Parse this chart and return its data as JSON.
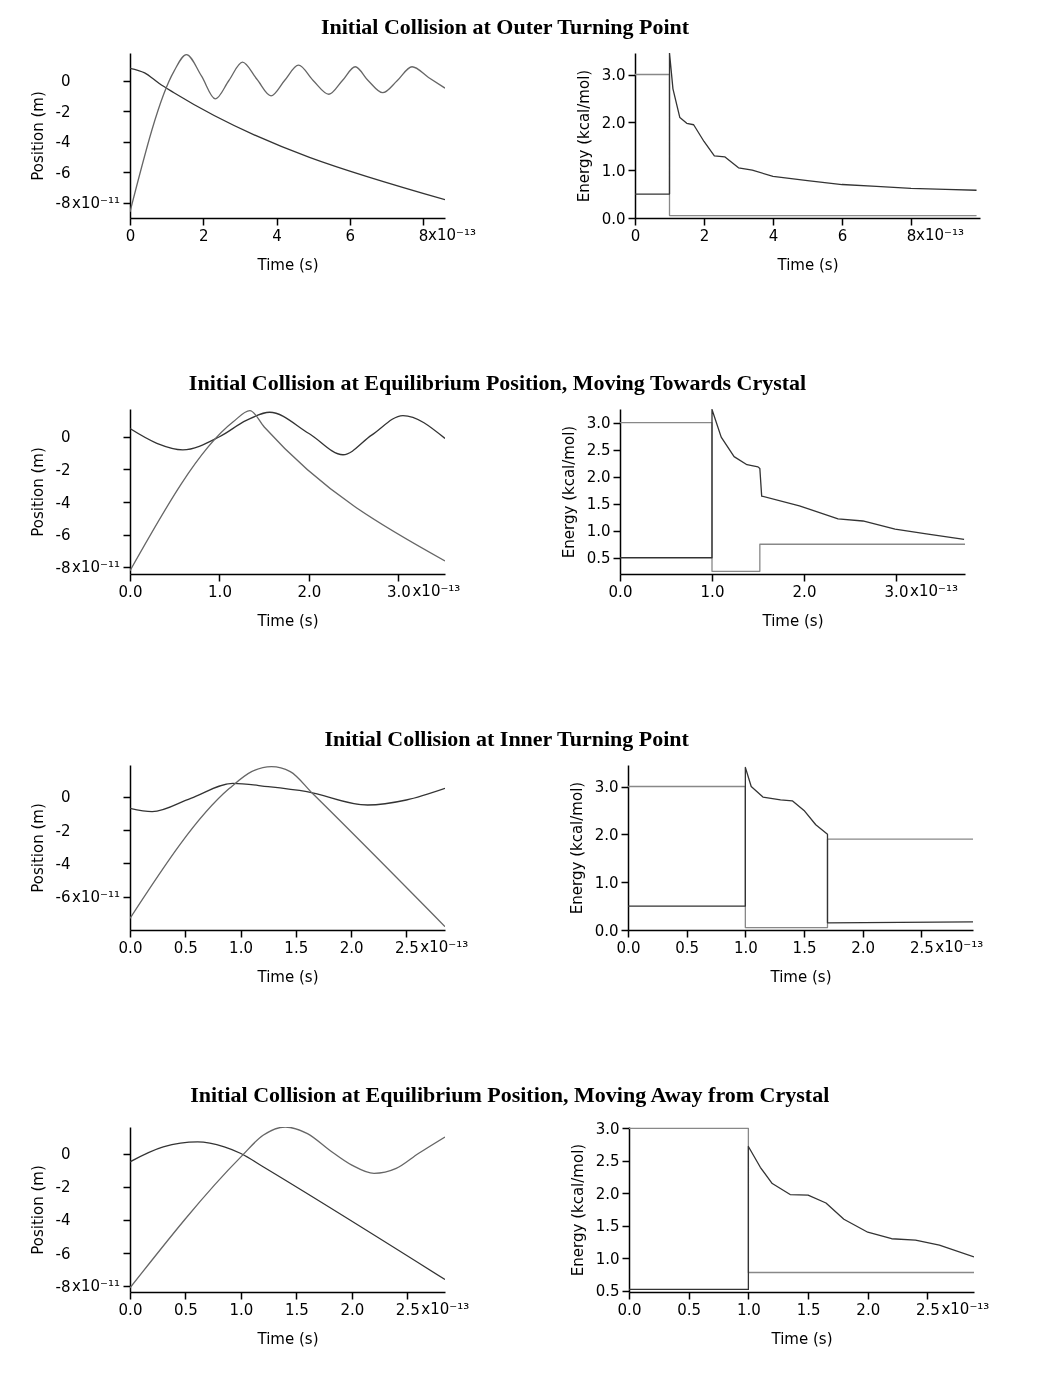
{
  "chart_data": [
    {
      "type": "line",
      "title": "Initial Collision at Outer Turning Point",
      "xlabel": "Time (s)",
      "ylabel": "Position (m)",
      "annotations": [
        "x10⁻¹³",
        "x10⁻¹¹"
      ],
      "xlim": [
        0,
        8.6
      ],
      "ylim": [
        -9,
        1.8
      ],
      "xticks": [
        0,
        2,
        4,
        6,
        8
      ],
      "yticks": [
        0,
        -2,
        -4,
        -6,
        -8
      ],
      "series": [
        {
          "color": "#333333",
          "x": [
            0,
            0.4,
            0.8,
            1.2,
            8.6
          ],
          "values": [
            0.8,
            0.5,
            -0.2,
            -0.8,
            -7.8
          ]
        },
        {
          "color": "#666666",
          "x": [
            0,
            1.2,
            1.54,
            1.95,
            2.33,
            2.7,
            3.07,
            3.46,
            3.85,
            4.22,
            4.6,
            5.0,
            5.43,
            5.8,
            6.15,
            6.5,
            6.9,
            7.3,
            7.7,
            8.15,
            8.6
          ],
          "values": [
            -8.6,
            0.6,
            1.7,
            0.3,
            -1.2,
            0,
            1.2,
            0.1,
            -1.0,
            0,
            1.0,
            0.0,
            -0.9,
            0,
            0.9,
            0,
            -0.8,
            0.0,
            0.9,
            0.2,
            -0.5
          ]
        }
      ]
    },
    {
      "type": "line",
      "xlabel": "Time (s)",
      "ylabel": "Energy (kcal/mol)",
      "annotations": [
        "x10⁻¹³"
      ],
      "xlim": [
        0,
        10
      ],
      "ylim": [
        0,
        3.45
      ],
      "xticks": [
        0,
        2,
        4,
        6,
        8
      ],
      "yticks": [
        {
          "value": 0,
          "label": "0.0"
        },
        {
          "value": 1,
          "label": "1.0"
        },
        {
          "value": 2,
          "label": "2.0"
        },
        {
          "value": 3,
          "label": "3.0"
        }
      ],
      "series": [
        {
          "color": "#888888",
          "x": [
            0,
            1,
            1,
            9.9
          ],
          "values": [
            3,
            3,
            0.05,
            0.05
          ]
        },
        {
          "color": "#333333",
          "x": [
            0,
            1,
            1,
            1.1,
            1.3,
            1.5,
            1.7,
            2.0,
            2.3,
            2.6,
            3.0,
            3.4,
            4.0,
            5.0,
            6.0,
            7.0,
            8.0,
            9.0,
            9.9
          ],
          "values": [
            0.5,
            0.5,
            3.45,
            2.7,
            2.1,
            1.98,
            1.95,
            1.6,
            1.3,
            1.28,
            1.05,
            1.0,
            0.87,
            0.78,
            0.7,
            0.66,
            0.62,
            0.6,
            0.58
          ]
        }
      ]
    },
    {
      "type": "line",
      "title": "Initial Collision at Equilibrium Position, Moving Towards Crystal",
      "xlabel": "Time (s)",
      "ylabel": "Position (m)",
      "annotations": [
        "x10⁻¹³",
        "x10⁻¹¹"
      ],
      "xlim": [
        0,
        3.52
      ],
      "ylim": [
        -8.4,
        1.7
      ],
      "xticks": [
        {
          "value": 0,
          "label": "0.0"
        },
        {
          "value": 1,
          "label": "1.0"
        },
        {
          "value": 2,
          "label": "2.0"
        },
        {
          "value": 3,
          "label": "3.0"
        }
      ],
      "yticks": [
        0,
        -2,
        -4,
        -6,
        -8
      ],
      "series": [
        {
          "color": "#333333",
          "x": [
            0,
            0.3,
            0.59,
            1.0,
            1.3,
            1.56,
            2.0,
            2.38,
            2.7,
            3.05,
            3.52
          ],
          "values": [
            0.5,
            -0.4,
            -0.8,
            0,
            1.0,
            1.5,
            0.2,
            -1.1,
            0.1,
            1.3,
            -0.1
          ]
        },
        {
          "color": "#666666",
          "x": [
            0,
            1.15,
            1.34,
            1.5,
            3.52
          ],
          "values": [
            -8.2,
            0.9,
            1.6,
            0.6,
            -7.6
          ]
        }
      ]
    },
    {
      "type": "line",
      "xlabel": "Time (s)",
      "ylabel": "Energy (kcal/mol)",
      "annotations": [
        "x10⁻¹³"
      ],
      "xlim": [
        0,
        3.75
      ],
      "ylim": [
        0.2,
        3.25
      ],
      "xticks": [
        {
          "value": 0,
          "label": "0.0"
        },
        {
          "value": 1,
          "label": "1.0"
        },
        {
          "value": 2,
          "label": "2.0"
        },
        {
          "value": 3,
          "label": "3.0"
        }
      ],
      "yticks": [
        0.5,
        {
          "value": 1,
          "label": "1.0"
        },
        1.5,
        {
          "value": 2,
          "label": "2.0"
        },
        2.5,
        {
          "value": 3,
          "label": "3.0"
        }
      ],
      "series": [
        {
          "color": "#888888",
          "x": [
            0,
            1,
            1,
            1.52,
            1.52,
            3.75
          ],
          "values": [
            3,
            3,
            0.25,
            0.25,
            0.75,
            0.75
          ]
        },
        {
          "color": "#333333",
          "x": [
            0,
            1,
            1,
            1.1,
            1.24,
            1.38,
            1.5,
            1.52,
            1.54,
            1.95,
            2.37,
            2.64,
            2.99,
            3.33,
            3.74
          ],
          "values": [
            0.5,
            0.5,
            3.24,
            2.73,
            2.37,
            2.22,
            2.18,
            2.15,
            1.64,
            1.46,
            1.22,
            1.18,
            1.03,
            0.94,
            0.84
          ]
        }
      ]
    },
    {
      "type": "line",
      "title": "Initial Collision at Inner Turning Point",
      "xlabel": "Time (s)",
      "ylabel": "Position (m)",
      "annotations": [
        "x10⁻¹³",
        "x10⁻¹¹"
      ],
      "xlim": [
        0,
        2.85
      ],
      "ylim": [
        -8,
        1.9
      ],
      "xticks": [
        {
          "value": 0,
          "label": "0.0"
        },
        0.5,
        {
          "value": 1,
          "label": "1.0"
        },
        1.5,
        {
          "value": 2,
          "label": "2.0"
        },
        2.5
      ],
      "yticks": [
        0,
        -2,
        -4,
        -6
      ],
      "series": [
        {
          "color": "#333333",
          "x": [
            0,
            0.2,
            0.55,
            0.93,
            1.25,
            1.6,
            2.15,
            2.5,
            2.85
          ],
          "values": [
            -0.7,
            -0.9,
            -0.1,
            0.8,
            0.6,
            0.3,
            -0.5,
            -0.2,
            0.5
          ]
        },
        {
          "color": "#666666",
          "x": [
            0,
            0.9,
            1.1,
            1.28,
            1.45,
            1.65,
            2.85
          ],
          "values": [
            -7.3,
            0.5,
            1.5,
            1.8,
            1.5,
            0.2,
            -7.8
          ]
        }
      ]
    },
    {
      "type": "line",
      "xlabel": "Time (s)",
      "ylabel": "Energy (kcal/mol)",
      "annotations": [
        "x10⁻¹³"
      ],
      "xlim": [
        0,
        2.94
      ],
      "ylim": [
        0,
        3.45
      ],
      "xticks": [
        {
          "value": 0,
          "label": "0.0"
        },
        0.5,
        {
          "value": 1,
          "label": "1.0"
        },
        1.5,
        {
          "value": 2,
          "label": "2.0"
        },
        2.5
      ],
      "yticks": [
        {
          "value": 0,
          "label": "0.0"
        },
        {
          "value": 1,
          "label": "1.0"
        },
        {
          "value": 2,
          "label": "2.0"
        },
        {
          "value": 3,
          "label": "3.0"
        }
      ],
      "series": [
        {
          "color": "#888888",
          "x": [
            0,
            1,
            1,
            1.7,
            1.7,
            2.94
          ],
          "values": [
            3,
            3,
            0.05,
            0.05,
            1.9,
            1.9
          ]
        },
        {
          "color": "#333333",
          "x": [
            0,
            1,
            1,
            1.05,
            1.15,
            1.3,
            1.4,
            1.5,
            1.6,
            1.7,
            1.7,
            2.94
          ],
          "values": [
            0.5,
            0.5,
            3.4,
            3.0,
            2.78,
            2.72,
            2.7,
            2.5,
            2.2,
            2.0,
            0.15,
            0.17
          ]
        }
      ]
    },
    {
      "type": "line",
      "title": "Initial Collision at Equilibrium Position, Moving Away from Crystal",
      "xlabel": "Time (s)",
      "ylabel": "Position (m)",
      "annotations": [
        "x10⁻¹³",
        "x10⁻¹¹"
      ],
      "xlim": [
        0,
        2.84
      ],
      "ylim": [
        -8.35,
        1.6
      ],
      "xticks": [
        {
          "value": 0,
          "label": "0.0"
        },
        0.5,
        {
          "value": 1,
          "label": "1.0"
        },
        1.5,
        {
          "value": 2,
          "label": "2.0"
        },
        2.5
      ],
      "yticks": [
        0,
        -2,
        -4,
        -6,
        -8
      ],
      "series": [
        {
          "color": "#333333",
          "x": [
            0,
            0.3,
            0.61,
            0.85,
            1.0,
            1.2,
            2.84
          ],
          "values": [
            -0.5,
            0.4,
            0.7,
            0.4,
            0.0,
            -0.8,
            -7.6
          ]
        },
        {
          "color": "#666666",
          "x": [
            0,
            1.0,
            1.2,
            1.4,
            1.6,
            1.8,
            2.0,
            2.2,
            2.4,
            2.6,
            2.84
          ],
          "values": [
            -8.1,
            -0.2,
            1.1,
            1.6,
            1.2,
            0.2,
            -0.7,
            -1.2,
            -0.9,
            0.0,
            1.0
          ]
        }
      ]
    },
    {
      "type": "line",
      "xlabel": "Time (s)",
      "ylabel": "Energy (kcal/mol)",
      "annotations": [
        "x10⁻¹³"
      ],
      "xlim": [
        0,
        2.89
      ],
      "ylim": [
        0.48,
        3.02
      ],
      "xticks": [
        {
          "value": 0,
          "label": "0.0"
        },
        0.5,
        {
          "value": 1,
          "label": "1.0"
        },
        1.5,
        {
          "value": 2,
          "label": "2.0"
        },
        2.5
      ],
      "yticks": [
        0.5,
        {
          "value": 1,
          "label": "1.0"
        },
        1.5,
        {
          "value": 2,
          "label": "2.0"
        },
        2.5,
        {
          "value": 3,
          "label": "3.0"
        }
      ],
      "series": [
        {
          "color": "#888888",
          "x": [
            0,
            1,
            1,
            2.89
          ],
          "values": [
            3,
            3,
            0.78,
            0.78
          ]
        },
        {
          "color": "#333333",
          "x": [
            0,
            1,
            1,
            1.1,
            1.2,
            1.35,
            1.5,
            1.65,
            1.8,
            2.0,
            2.2,
            2.4,
            2.6,
            2.89
          ],
          "values": [
            0.52,
            0.52,
            2.72,
            2.4,
            2.15,
            1.98,
            1.97,
            1.85,
            1.6,
            1.4,
            1.3,
            1.28,
            1.2,
            1.02
          ]
        }
      ]
    }
  ]
}
